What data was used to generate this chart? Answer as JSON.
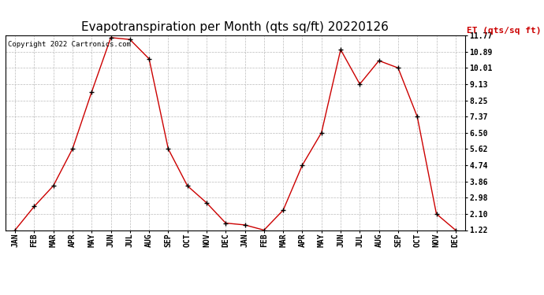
{
  "title": "Evapotranspiration per Month (qts sq/ft) 20220126",
  "copyright_text": "Copyright 2022 Cartronics.com",
  "legend_label": "ET (qts/sq ft)",
  "months": [
    "JAN",
    "FEB",
    "MAR",
    "APR",
    "MAY",
    "JUN",
    "JUL",
    "AUG",
    "SEP",
    "OCT",
    "NOV",
    "DEC",
    "JAN",
    "FEB",
    "MAR",
    "APR",
    "MAY",
    "JUN",
    "JUL",
    "AUG",
    "SEP",
    "OCT",
    "NOV",
    "DEC"
  ],
  "values": [
    1.22,
    2.5,
    3.62,
    5.62,
    8.7,
    11.65,
    11.55,
    10.5,
    5.62,
    3.62,
    2.7,
    1.6,
    1.5,
    1.22,
    2.3,
    4.74,
    6.5,
    11.0,
    9.13,
    10.4,
    10.01,
    7.37,
    2.1,
    1.22
  ],
  "yticks": [
    1.22,
    2.1,
    2.98,
    3.86,
    4.74,
    5.62,
    6.5,
    7.37,
    8.25,
    9.13,
    10.01,
    10.89,
    11.77
  ],
  "ymin": 1.22,
  "ymax": 11.77,
  "line_color": "#cc0000",
  "marker_color": "#000000",
  "grid_color": "#bbbbbb",
  "background_color": "#ffffff",
  "title_fontsize": 11,
  "tick_fontsize": 7,
  "copyright_fontsize": 6.5,
  "legend_fontsize": 8
}
